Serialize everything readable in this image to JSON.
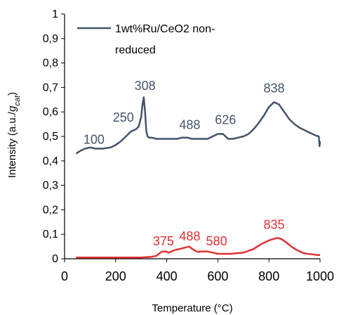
{
  "chart_data": {
    "type": "line",
    "xlabel": "Temperature (°C)",
    "ylabel_prefix": "Intensity (a.u./g",
    "ylabel_sub": "cat",
    "ylabel_suffix": ")",
    "xlim": [
      0,
      1000
    ],
    "ylim": [
      0,
      1
    ],
    "x_ticks": [
      "0",
      "200",
      "400",
      "600",
      "800",
      "1000"
    ],
    "x_tick_values": [
      0,
      200,
      400,
      600,
      800,
      1000
    ],
    "y_ticks": [
      "0",
      "0,1",
      "0,2",
      "0,3",
      "0,4",
      "0,5",
      "0,6",
      "0,7",
      "0,8",
      "0,9",
      "1"
    ],
    "y_tick_values": [
      0,
      0.1,
      0.2,
      0.3,
      0.4,
      0.5,
      0.6,
      0.7,
      0.8,
      0.9,
      1.0
    ],
    "grid": false,
    "legend_placement": "top-left",
    "legend": [
      {
        "line1": "1wt%Ru/CeO2 non-",
        "line2": "reduced",
        "color": "#44546a"
      }
    ],
    "series": [
      {
        "name": "1wt%Ru/CeO2 non-reduced",
        "color": "#44546a",
        "x": [
          45,
          60,
          80,
          100,
          120,
          150,
          180,
          200,
          220,
          240,
          260,
          280,
          290,
          300,
          305,
          310,
          315,
          320,
          325,
          330,
          340,
          360,
          380,
          400,
          420,
          440,
          460,
          480,
          500,
          520,
          540,
          560,
          580,
          600,
          620,
          640,
          660,
          680,
          700,
          720,
          740,
          760,
          780,
          800,
          820,
          840,
          860,
          880,
          900,
          920,
          940,
          960,
          980,
          995,
          998,
          1000
        ],
        "y": [
          0.43,
          0.44,
          0.45,
          0.455,
          0.45,
          0.45,
          0.455,
          0.465,
          0.48,
          0.5,
          0.52,
          0.53,
          0.54,
          0.58,
          0.63,
          0.66,
          0.6,
          0.52,
          0.5,
          0.495,
          0.495,
          0.49,
          0.49,
          0.49,
          0.49,
          0.49,
          0.495,
          0.495,
          0.49,
          0.49,
          0.49,
          0.49,
          0.5,
          0.51,
          0.51,
          0.49,
          0.49,
          0.495,
          0.5,
          0.51,
          0.53,
          0.555,
          0.585,
          0.62,
          0.64,
          0.63,
          0.6,
          0.57,
          0.55,
          0.535,
          0.525,
          0.515,
          0.505,
          0.5,
          0.46,
          0.48
        ]
      },
      {
        "name": "",
        "color": "#e03232",
        "x": [
          45,
          100,
          200,
          300,
          340,
          360,
          375,
          385,
          395,
          410,
          430,
          450,
          470,
          488,
          500,
          520,
          540,
          560,
          580,
          600,
          650,
          700,
          740,
          770,
          800,
          820,
          835,
          850,
          870,
          890,
          910,
          930,
          950,
          970,
          990,
          1000
        ],
        "y": [
          0.005,
          0.005,
          0.005,
          0.005,
          0.008,
          0.012,
          0.025,
          0.03,
          0.03,
          0.025,
          0.035,
          0.04,
          0.045,
          0.05,
          0.04,
          0.028,
          0.03,
          0.03,
          0.025,
          0.02,
          0.02,
          0.025,
          0.04,
          0.06,
          0.075,
          0.082,
          0.085,
          0.08,
          0.065,
          0.048,
          0.035,
          0.025,
          0.02,
          0.018,
          0.015,
          0.015
        ]
      }
    ],
    "annotations": [
      {
        "text": "100",
        "x": 115,
        "y": 0.47,
        "color": "#44546a"
      },
      {
        "text": "250",
        "x": 230,
        "y": 0.56,
        "color": "#44546a"
      },
      {
        "text": "308",
        "x": 315,
        "y": 0.69,
        "color": "#44546a"
      },
      {
        "text": "488",
        "x": 490,
        "y": 0.53,
        "color": "#44546a"
      },
      {
        "text": "626",
        "x": 630,
        "y": 0.55,
        "color": "#44546a"
      },
      {
        "text": "838",
        "x": 820,
        "y": 0.68,
        "color": "#44546a"
      },
      {
        "text": "375",
        "x": 387,
        "y": 0.055,
        "color": "#e03232"
      },
      {
        "text": "488",
        "x": 490,
        "y": 0.075,
        "color": "#e03232"
      },
      {
        "text": "580",
        "x": 595,
        "y": 0.055,
        "color": "#e03232"
      },
      {
        "text": "835",
        "x": 820,
        "y": 0.122,
        "color": "#e03232"
      }
    ]
  }
}
